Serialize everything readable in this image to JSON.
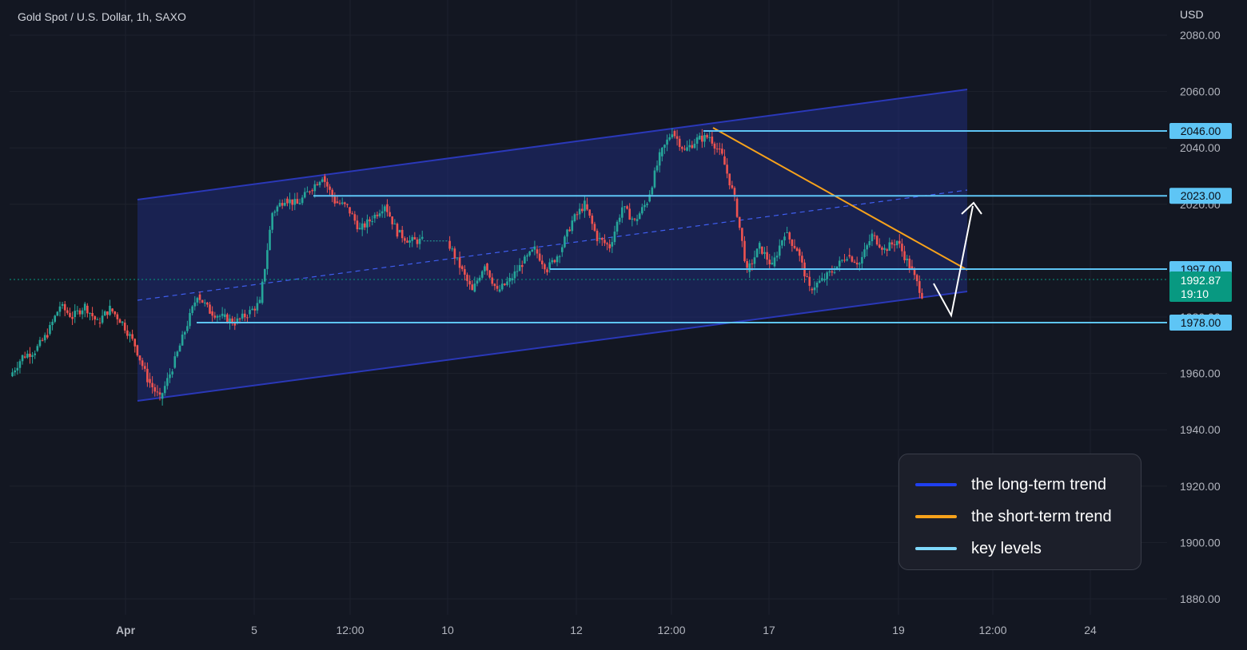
{
  "header": {
    "symbol_title": "Gold Spot / U.S. Dollar, 1h, SAXO",
    "currency": "USD"
  },
  "colors": {
    "background": "#131722",
    "grid": "#1e222d",
    "up_candle": "#26a69a",
    "down_candle": "#ef5350",
    "channel": "#2a38b8",
    "channel_fill": "#1f2c78",
    "short_trend": "#f7a21b",
    "key_level": "#5ec5f5",
    "price_label": "#089981",
    "axis_text": "#b2b5be"
  },
  "legend": {
    "items": [
      {
        "label": "the long-term trend",
        "color": "#1f3ff0"
      },
      {
        "label": "the short-term trend",
        "color": "#f7a21b"
      },
      {
        "label": "key levels",
        "color": "#7fd8fb"
      }
    ]
  },
  "chart_data": {
    "type": "candlestick",
    "title": "Gold Spot / U.S. Dollar, 1h, SAXO",
    "y_unit": "USD",
    "ylim": [
      1870,
      2090
    ],
    "y_ticks": [
      "1880.00",
      "1900.00",
      "1920.00",
      "1940.00",
      "1960.00",
      "1980.00",
      "2020.00",
      "2040.00",
      "2060.00",
      "2080.00"
    ],
    "x_ticks": [
      "Apr",
      "5",
      "12:00",
      "10",
      "12",
      "12:00",
      "17",
      "19",
      "12:00",
      "24"
    ],
    "grid": true,
    "key_levels": [
      {
        "label": "2046.00",
        "value": 2046.0
      },
      {
        "label": "2023.00",
        "value": 2023.0
      },
      {
        "label": "1997.00",
        "value": 1997.0
      },
      {
        "label": "1978.00",
        "value": 1978.0
      }
    ],
    "last_price": {
      "value": "1992.87",
      "countdown": "19:10"
    },
    "price_path": [
      1959,
      1966,
      1968,
      1974,
      1984,
      1980,
      1984,
      1978,
      1983,
      1978,
      1970,
      1958,
      1951,
      1962,
      1975,
      1988,
      1982,
      1980,
      1978,
      1981,
      1985,
      2017,
      2022,
      2020,
      2025,
      2030,
      2021,
      2019,
      2011,
      2015,
      2020,
      2010,
      2007,
      2007,
      2007,
      2007,
      1998,
      1989,
      1999,
      1989,
      1993,
      1999,
      2004,
      1997,
      2003,
      2014,
      2020,
      2008,
      2005,
      2019,
      2014,
      2021,
      2037,
      2046,
      2039,
      2043,
      2044,
      2037,
      2022,
      1996,
      2005,
      1998,
      2010,
      2004,
      1990,
      1993,
      1997,
      2002,
      1999,
      2009,
      2004,
      2007,
      1998,
      1988
    ],
    "annotations": {
      "long_term_channel": "rising blue channel with dashed midline",
      "short_term_trend": "descending orange trendline from 2046 high",
      "projection": "white arrow: dip toward 1978 then rally to 2023"
    }
  }
}
